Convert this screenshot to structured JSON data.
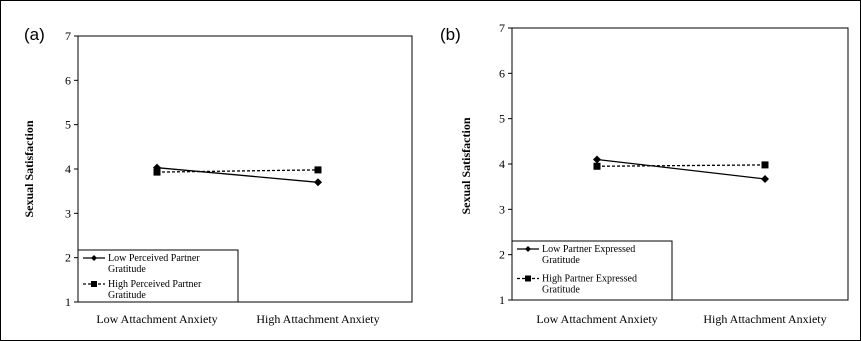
{
  "chart_data": [
    {
      "type": "line",
      "panel_label": "(a)",
      "ylabel": "Sexual Satisfaction",
      "xlabel": "",
      "ylim": [
        1,
        7
      ],
      "yticks": [
        "1",
        "2",
        "3",
        "4",
        "5",
        "6",
        "7"
      ],
      "categories": [
        "Low Attachment Anxiety",
        "High Attachment Anxiety"
      ],
      "legend_position": "bottom-left",
      "series": [
        {
          "name_lines": [
            "Low Perceived Partner",
            "Gratitude"
          ],
          "values": [
            4.03,
            3.7
          ],
          "style": "solid",
          "marker": "diamond"
        },
        {
          "name_lines": [
            "High Perceived Partner",
            "Gratitude"
          ],
          "values": [
            3.93,
            3.98
          ],
          "style": "dashed",
          "marker": "square"
        }
      ]
    },
    {
      "type": "line",
      "panel_label": "(b)",
      "ylabel": "Sexual Satisfaction",
      "xlabel": "",
      "ylim": [
        1,
        7
      ],
      "yticks": [
        "1",
        "2",
        "3",
        "4",
        "5",
        "6",
        "7"
      ],
      "categories": [
        "Low Attachment Anxiety",
        "High Attachment Anxiety"
      ],
      "legend_position": "bottom-left",
      "series": [
        {
          "name_lines": [
            "Low Partner Expressed",
            "Gratitude"
          ],
          "values": [
            4.1,
            3.67
          ],
          "style": "solid",
          "marker": "diamond"
        },
        {
          "name_lines": [
            "High Partner Expressed",
            "Gratitude"
          ],
          "values": [
            3.95,
            3.98
          ],
          "style": "dashed",
          "marker": "square"
        }
      ]
    }
  ]
}
